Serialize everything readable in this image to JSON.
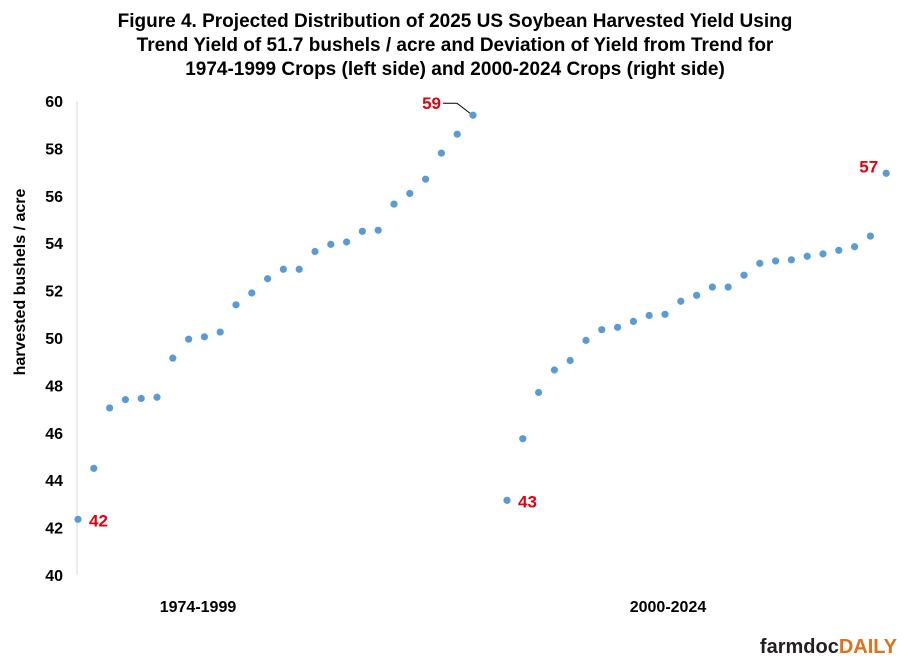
{
  "chart_data": {
    "type": "scatter",
    "title": [
      "Figure 4. Projected Distribution of 2025 US Soybean Harvested Yield Using",
      "Trend Yield of 51.7 bushels / acre and Deviation of Yield from Trend for",
      "1974-1999 Crops (left side) and 2000-2024 Crops (right side)"
    ],
    "ylabel": "harvested bushels / acre",
    "ylim": [
      40,
      60
    ],
    "yticks": [
      "40",
      "42",
      "44",
      "46",
      "48",
      "50",
      "52",
      "54",
      "56",
      "58",
      "60"
    ],
    "grid": false,
    "marker_color": "#5b9bd5",
    "annotation_color": "#e3000f",
    "groups": [
      {
        "label": "1974-1999",
        "values": [
          42.35,
          44.5,
          47.05,
          47.4,
          47.45,
          47.5,
          49.15,
          49.95,
          50.05,
          50.25,
          51.4,
          51.9,
          52.5,
          52.9,
          52.9,
          53.65,
          53.95,
          54.05,
          54.5,
          54.55,
          55.65,
          56.1,
          56.7,
          57.8,
          58.6,
          59.4
        ]
      },
      {
        "label": "2000-2024",
        "values": [
          43.15,
          45.75,
          47.7,
          48.65,
          49.05,
          49.9,
          50.35,
          50.45,
          50.7,
          50.95,
          51.0,
          51.55,
          51.8,
          52.15,
          52.15,
          52.65,
          53.15,
          53.25,
          53.3,
          53.45,
          53.55,
          53.7,
          53.85,
          54.3,
          56.95
        ]
      }
    ],
    "annotations": [
      {
        "text": "42",
        "group": 0,
        "point": "first",
        "side": "right",
        "leader": false
      },
      {
        "text": "59",
        "group": 0,
        "point": "last",
        "side": "left",
        "leader": true
      },
      {
        "text": "43",
        "group": 1,
        "point": "first",
        "side": "right",
        "leader": false
      },
      {
        "text": "57",
        "group": 1,
        "point": "last",
        "side": "left",
        "leader": false
      }
    ]
  },
  "branding": {
    "logo_main": "farmdoc",
    "logo_accent": "DAILY"
  }
}
